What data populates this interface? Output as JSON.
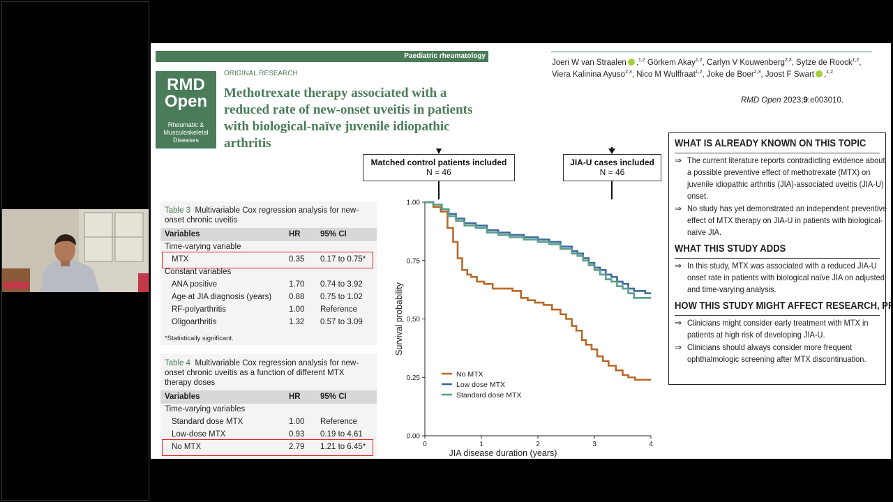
{
  "slide": {
    "section_label": "Paediatric rheumatology",
    "logo": {
      "line1": "RMD",
      "line2": "Open",
      "subtitle": "Rheumatic & Musculoskeletal Diseases"
    },
    "article_type": "ORIGINAL RESEARCH",
    "title": "Methotrexate therapy associated with a reduced rate of new-onset uveitis in patients with biological-naïve juvenile idiopathic arthritis",
    "authors": [
      {
        "name": "Joeri W van Straalen",
        "orcid": true,
        "aff": "1,2"
      },
      {
        "name": "Görkem Akay",
        "orcid": false,
        "aff": "1,2"
      },
      {
        "name": "Carlyn V Kouwenberg",
        "orcid": false,
        "aff": "2,3"
      },
      {
        "name": "Sytze de Roock",
        "orcid": false,
        "aff": "1,2"
      },
      {
        "name": "Viera Kalinina Ayuso",
        "orcid": false,
        "aff": "2,3"
      },
      {
        "name": "Nico M Wulffraat",
        "orcid": false,
        "aff": "1,2"
      },
      {
        "name": "Joke de Boer",
        "orcid": false,
        "aff": "2,3"
      },
      {
        "name": "Joost F Swart",
        "orcid": true,
        "aff": "1,2"
      }
    ],
    "citation": {
      "journal": "RMD Open",
      "year": " 2023;",
      "volume": "9",
      "article": ":e003010."
    },
    "table3": {
      "label": "Table 3",
      "caption": "Multivariable Cox regression analysis for new-onset chronic uveitis",
      "headers": [
        "Variables",
        "HR",
        "95% CI"
      ],
      "rows": [
        {
          "kind": "section",
          "label": "Time-varying variable"
        },
        {
          "kind": "row",
          "label": "MTX",
          "hr": "0.35",
          "ci": "0.17 to 0.75*",
          "highlight": true
        },
        {
          "kind": "section",
          "label": "Constant variables"
        },
        {
          "kind": "row",
          "label": "ANA positive",
          "hr": "1.70",
          "ci": "0.74 to 3.92"
        },
        {
          "kind": "row",
          "label": "Age at JIA diagnosis (years)",
          "hr": "0.88",
          "ci": "0.75 to 1.02"
        },
        {
          "kind": "row",
          "label": "RF-polyarthritis",
          "hr": "1.00",
          "ci": "Reference"
        },
        {
          "kind": "row",
          "label": "Oligoarthritis",
          "hr": "1.32",
          "ci": "0.57 to 3.09"
        }
      ],
      "footnote": "*Statistically significant."
    },
    "table4": {
      "label": "Table 4",
      "caption": "Multivariable Cox regression analysis for new-onset chronic uveitis as a function of different MTX therapy doses",
      "headers": [
        "Variables",
        "HR",
        "95% CI"
      ],
      "rows": [
        {
          "kind": "section",
          "label": "Time-varying variables"
        },
        {
          "kind": "row",
          "label": "Standard dose MTX",
          "hr": "1.00",
          "ci": "Reference"
        },
        {
          "kind": "row",
          "label": "Low-dose MTX",
          "hr": "0.93",
          "ci": "0.19 to 4.61"
        },
        {
          "kind": "row",
          "label": "No MTX",
          "hr": "2.79",
          "ci": "1.21 to 6.45*",
          "highlight": true
        }
      ]
    },
    "flow": {
      "left": {
        "title": "Matched control patients included",
        "n": "N = 46"
      },
      "right": {
        "title": "JIA-U cases included",
        "n": "N = 46"
      }
    },
    "known_box": {
      "sections": [
        {
          "heading": "WHAT IS ALREADY KNOWN ON THIS TOPIC",
          "items": [
            "The current literature reports contradicting evidence about a possible preventive effect of methotrexate (MTX) on juvenile idiopathic arthritis (JIA)-associated uveitis (JIA-U) onset.",
            "No study has yet demonstrated an independent preventive effect of MTX therapy on JIA-U in patients with biological-naïve JIA."
          ]
        },
        {
          "heading": "WHAT THIS STUDY ADDS",
          "items": [
            "In this study, MTX was associated with a reduced JIA-U onset rate in patients with biological naïve JIA on adjusted and time-varying analysis."
          ]
        },
        {
          "heading": "HOW THIS STUDY MIGHT AFFECT RESEARCH, PRACTICE OR POLICY",
          "items": [
            "Clinicians might consider early treatment with MTX in patients at high risk of developing JIA-U.",
            "Clinicians should always consider more frequent ophthalmologic screening after MTX discontinuation."
          ]
        }
      ],
      "arrow_glyph": "⇒"
    }
  },
  "chart_data": {
    "type": "line",
    "step": true,
    "xlabel": "JIA disease duration (years)",
    "ylabel": "Survival probability",
    "xlim": [
      0,
      4
    ],
    "ylim": [
      0,
      1
    ],
    "xticks": [
      "0",
      "1",
      "2",
      "3",
      "4"
    ],
    "yticks": [
      "0.00",
      "0.25",
      "0.50",
      "0.75",
      "1.00"
    ],
    "legend_position": "bottom-left",
    "series": [
      {
        "name": "No MTX",
        "color": "#b7692b",
        "x": [
          0,
          0.15,
          0.28,
          0.4,
          0.5,
          0.58,
          0.66,
          0.75,
          0.82,
          0.92,
          1.05,
          1.2,
          1.35,
          1.55,
          1.7,
          1.82,
          1.95,
          2.1,
          2.25,
          2.4,
          2.5,
          2.6,
          2.68,
          2.78,
          2.85,
          2.95,
          3.05,
          3.15,
          3.25,
          3.38,
          3.5,
          3.6,
          3.72,
          3.9
        ],
        "y": [
          1.0,
          0.98,
          0.96,
          0.89,
          0.83,
          0.76,
          0.71,
          0.69,
          0.68,
          0.66,
          0.65,
          0.63,
          0.63,
          0.62,
          0.59,
          0.58,
          0.57,
          0.56,
          0.54,
          0.52,
          0.5,
          0.47,
          0.45,
          0.41,
          0.39,
          0.37,
          0.34,
          0.32,
          0.3,
          0.28,
          0.26,
          0.25,
          0.24,
          0.24
        ]
      },
      {
        "name": "Low dose MTX",
        "color": "#3b6a9c",
        "x": [
          0,
          0.15,
          0.3,
          0.42,
          0.55,
          0.7,
          0.9,
          1.1,
          1.3,
          1.5,
          1.75,
          2.0,
          2.2,
          2.4,
          2.6,
          2.7,
          2.8,
          2.9,
          3.0,
          3.1,
          3.2,
          3.3,
          3.4,
          3.5,
          3.6,
          3.7,
          3.9
        ],
        "y": [
          1.0,
          0.99,
          0.97,
          0.95,
          0.93,
          0.91,
          0.9,
          0.88,
          0.87,
          0.86,
          0.85,
          0.84,
          0.83,
          0.81,
          0.79,
          0.78,
          0.76,
          0.74,
          0.72,
          0.71,
          0.69,
          0.68,
          0.66,
          0.65,
          0.63,
          0.62,
          0.61
        ]
      },
      {
        "name": "Standard dose MTX",
        "color": "#5b9e8a",
        "x": [
          0,
          0.15,
          0.3,
          0.42,
          0.55,
          0.7,
          0.9,
          1.1,
          1.3,
          1.5,
          1.75,
          2.0,
          2.2,
          2.4,
          2.6,
          2.7,
          2.8,
          2.9,
          3.0,
          3.1,
          3.2,
          3.3,
          3.4,
          3.5,
          3.6,
          3.7,
          3.9
        ],
        "y": [
          1.0,
          0.99,
          0.97,
          0.94,
          0.92,
          0.9,
          0.89,
          0.87,
          0.86,
          0.85,
          0.84,
          0.83,
          0.82,
          0.8,
          0.78,
          0.77,
          0.75,
          0.73,
          0.71,
          0.69,
          0.67,
          0.66,
          0.64,
          0.63,
          0.61,
          0.59,
          0.59
        ]
      }
    ]
  }
}
